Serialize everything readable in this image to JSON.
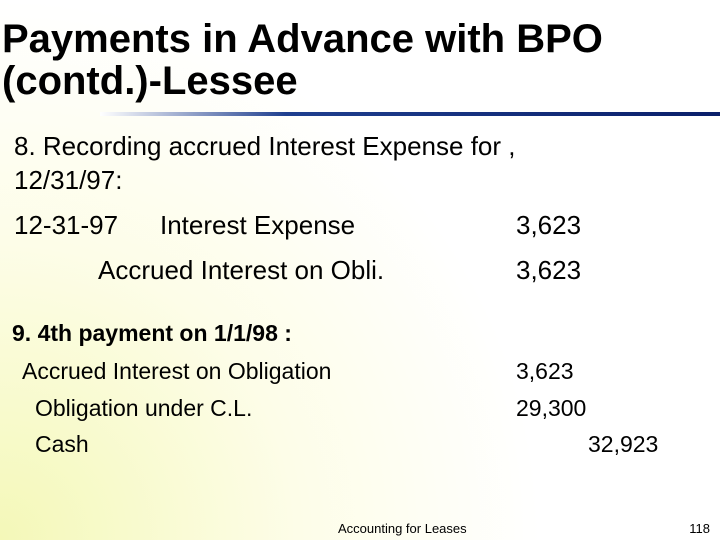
{
  "header": {
    "title_lines": [
      "Payments in Advance with BPO",
      "(contd.)-Lessee"
    ]
  },
  "section1": {
    "heading_lines": [
      "8. Recording accrued Interest Expense for ,",
      "12/31/97:"
    ],
    "entries": [
      {
        "date": "12-31-97",
        "account": "Interest Expense",
        "amount": "3,623"
      },
      {
        "account": "Accrued Interest on Obli.",
        "amount": "3,623"
      }
    ]
  },
  "section2": {
    "heading": "9. 4th payment  on 1/1/98 :",
    "entries": [
      {
        "account": "Accrued Interest on Obligation",
        "amount": "3,623"
      },
      {
        "account": "Obligation under C.L.",
        "amount": "29,300"
      },
      {
        "account": "Cash",
        "amount": "32,923"
      }
    ]
  },
  "footer": {
    "text": "Accounting for Leases",
    "page": "118"
  }
}
